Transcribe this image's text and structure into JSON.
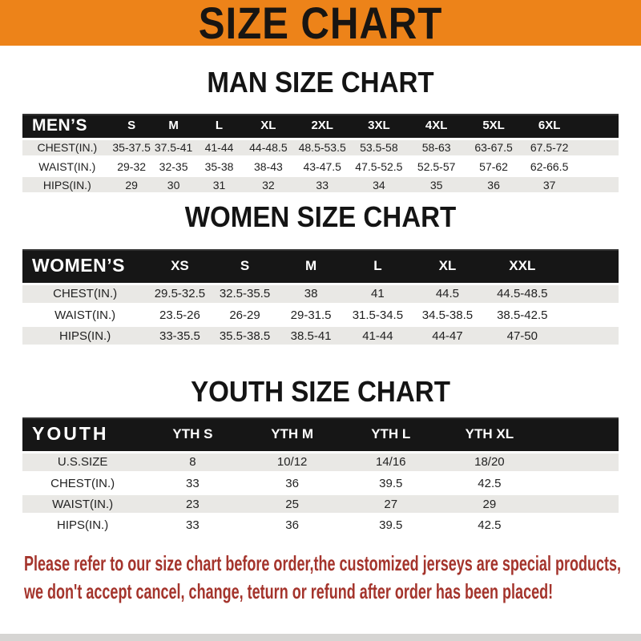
{
  "banner": {
    "title": "SIZE CHART",
    "bg_color": "#ED8319",
    "text_color": "#181512"
  },
  "colors": {
    "table_header_bg": "#161616",
    "table_header_text": "#FFFFFF",
    "row_stripe_gray": "#E9E8E5",
    "footer_text": "#A4342C"
  },
  "sections": [
    {
      "title": "MAN SIZE CHART",
      "header_label": "MEN’S",
      "columns": [
        "S",
        "M",
        "L",
        "XL",
        "2XL",
        "3XL",
        "4XL",
        "5XL",
        "6XL"
      ],
      "rows": [
        {
          "label": "CHEST(IN.)",
          "values": [
            "35-37.5",
            "37.5-41",
            "41-44",
            "44-48.5",
            "48.5-53.5",
            "53.5-58",
            "58-63",
            "63-67.5",
            "67.5-72"
          ]
        },
        {
          "label": "WAIST(IN.)",
          "values": [
            "29-32",
            "32-35",
            "35-38",
            "38-43",
            "43-47.5",
            "47.5-52.5",
            "52.5-57",
            "57-62",
            "62-66.5"
          ]
        },
        {
          "label": "HIPS(IN.)",
          "values": [
            "29",
            "30",
            "31",
            "32",
            "33",
            "34",
            "35",
            "36",
            "37"
          ]
        }
      ]
    },
    {
      "title": "WOMEN SIZE CHART",
      "header_label": "WOMEN’S",
      "columns": [
        "XS",
        "S",
        "M",
        "L",
        "XL",
        "XXL"
      ],
      "rows": [
        {
          "label": "CHEST(IN.)",
          "values": [
            "29.5-32.5",
            "32.5-35.5",
            "38",
            "41",
            "44.5",
            "44.5-48.5"
          ]
        },
        {
          "label": "WAIST(IN.)",
          "values": [
            "23.5-26",
            "26-29",
            "29-31.5",
            "31.5-34.5",
            "34.5-38.5",
            "38.5-42.5"
          ]
        },
        {
          "label": "HIPS(IN.)",
          "values": [
            "33-35.5",
            "35.5-38.5",
            "38.5-41",
            "41-44",
            "44-47",
            "47-50"
          ]
        }
      ]
    },
    {
      "title": "YOUTH SIZE CHART",
      "header_label": "YOUTH",
      "columns": [
        "YTH S",
        "YTH M",
        "YTH L",
        "YTH XL"
      ],
      "rows": [
        {
          "label": "U.S.SIZE",
          "values": [
            "8",
            "10/12",
            "14/16",
            "18/20"
          ]
        },
        {
          "label": "CHEST(IN.)",
          "values": [
            "33",
            "36",
            "39.5",
            "42.5"
          ]
        },
        {
          "label": "WAIST(IN.)",
          "values": [
            "23",
            "25",
            "27",
            "29"
          ]
        },
        {
          "label": "HIPS(IN.)",
          "values": [
            "33",
            "36",
            "39.5",
            "42.5"
          ]
        }
      ]
    }
  ],
  "footer": {
    "line1": "Please refer to our size chart before order,the customized jerseys are special products,",
    "line2": "we don't accept cancel, change, teturn or refund after order has been placed!"
  }
}
